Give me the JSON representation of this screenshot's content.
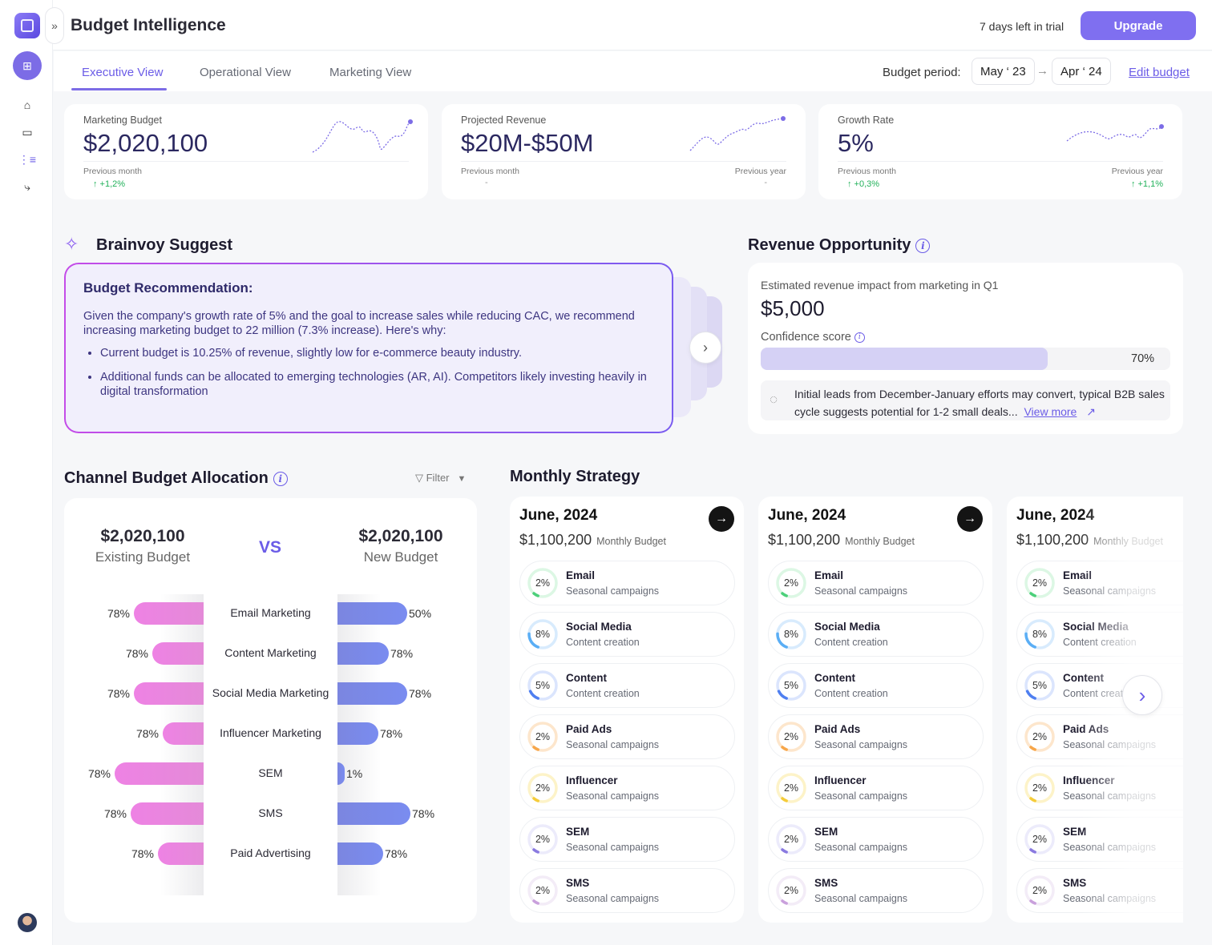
{
  "app": {
    "title": "Budget Intelligence",
    "trial": "7 days left in trial",
    "upgrade": "Upgrade",
    "expand_icon": "»"
  },
  "sidebar": {
    "items": [
      {
        "icon": "home-icon"
      },
      {
        "icon": "wallet-icon"
      },
      {
        "icon": "hierarchy-icon"
      },
      {
        "icon": "workflow-icon"
      }
    ]
  },
  "tabs": [
    {
      "label": "Executive View",
      "active": true
    },
    {
      "label": "Operational View"
    },
    {
      "label": "Marketing View"
    }
  ],
  "budget_period": {
    "label": "Budget period:",
    "from": "May ‘ 23",
    "to": "Apr ‘ 24",
    "arrow": "→",
    "edit": "Edit budget"
  },
  "kpis": [
    {
      "label": "Marketing Budget",
      "value": "$2,020,100",
      "left_label": "Previous month",
      "left_value": "↑ +1,2%"
    },
    {
      "label": "Projected Revenue",
      "value": "$20M-$50M",
      "left_label": "Previous month",
      "left_value": "-",
      "right_label": "Previous year",
      "right_value": "-"
    },
    {
      "label": "Growth Rate",
      "value": "5%",
      "left_label": "Previous month",
      "left_value": "↑ +0,3%",
      "right_label": "Previous year",
      "right_value": "↑ +1,1%"
    }
  ],
  "suggest": {
    "title": "Brainvoy Suggest",
    "card_title": "Budget Recommendation:",
    "intro": "Given the company's growth rate of 5% and the goal to increase sales while reducing CAC, we recommend increasing marketing budget to 22 million (7.3% increase). Here's why:",
    "bullets": [
      "Current budget is 10.25% of revenue, slightly low for e-commerce beauty industry.",
      "Additional funds can be allocated to emerging technologies (AR, AI). Competitors likely investing heavily in digital transformation"
    ]
  },
  "revenue": {
    "title": "Revenue Opportunity",
    "caption": "Estimated revenue impact from marketing in Q1",
    "value": "$5,000",
    "confidence_label": "Confidence score",
    "confidence": 70,
    "confidence_text": "70%",
    "insight": "Initial leads from December-January efforts may convert, typical  B2B sales cycle suggests potential for 1-2 small deals...",
    "view_more": "View more"
  },
  "allocation": {
    "title": "Channel Budget Allocation",
    "filter": "Filter",
    "existing_value": "$2,020,100",
    "existing_label": "Existing Budget",
    "vs": "VS",
    "new_value": "$2,020,100",
    "new_label": "New Budget",
    "channels": [
      {
        "name": "Email Marketing",
        "existing": "78%",
        "new": "50%"
      },
      {
        "name": "Content Marketing",
        "existing": "78%",
        "new": "78%"
      },
      {
        "name": "Social Media Marketing",
        "existing": "78%",
        "new": "78%"
      },
      {
        "name": "Influencer Marketing",
        "existing": "78%",
        "new": "78%"
      },
      {
        "name": "SEM",
        "existing": "78%",
        "new": "1%"
      },
      {
        "name": "SMS",
        "existing": "78%",
        "new": "78%"
      },
      {
        "name": "Paid Advertising",
        "existing": "78%",
        "new": "78%"
      }
    ],
    "colors": {
      "existing": "#ee82e4",
      "new": "#7a8cf0"
    }
  },
  "strategy": {
    "title": "Monthly Strategy",
    "budget_label": "Monthly Budget",
    "months": [
      {
        "month": "June, 2024",
        "budget": "$1,100,200"
      },
      {
        "month": "June, 2024",
        "budget": "$1,100,200"
      },
      {
        "month": "June, 2024",
        "budget": "$1,100,200"
      }
    ],
    "items": [
      {
        "name": "Email",
        "desc": "Seasonal campaigns",
        "pct": "2%",
        "color": "#4cd07a",
        "track": "#dcf7e4"
      },
      {
        "name": "Social Media",
        "desc": "Content creation",
        "pct": "8%",
        "color": "#5aaef5",
        "track": "#d8ebfd"
      },
      {
        "name": "Content",
        "desc": "Content creation",
        "pct": "5%",
        "color": "#4f7ff0",
        "track": "#dbe5fd"
      },
      {
        "name": "Paid Ads",
        "desc": "Seasonal campaigns",
        "pct": "2%",
        "color": "#f7a64a",
        "track": "#fde6cc"
      },
      {
        "name": "Influencer",
        "desc": "Seasonal campaigns",
        "pct": "2%",
        "color": "#f5cc3a",
        "track": "#fdf3c8"
      },
      {
        "name": "SEM",
        "desc": "Seasonal campaigns",
        "pct": "2%",
        "color": "#8a7ae0",
        "track": "#ecebfb"
      },
      {
        "name": "SMS",
        "desc": "Seasonal campaigns",
        "pct": "2%",
        "color": "#c9a0dc",
        "track": "#f3ecf7"
      }
    ]
  }
}
